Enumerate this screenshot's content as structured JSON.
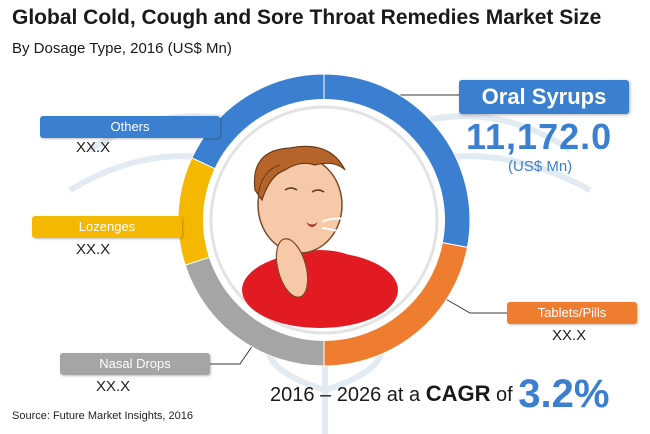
{
  "title": "Global Cold, Cough and Sore Throat Remedies Market Size",
  "subtitle": "By Dosage Type, 2016 (US$ Mn)",
  "source": "Source: Future Market Insights, 2016",
  "highlight": {
    "label": "Oral Syrups",
    "value": "11,172.0",
    "unit": "(US$ Mn)"
  },
  "cagr": {
    "prefix": "2016 – 2026 at a",
    "word": "CAGR",
    "of": "of",
    "rate": "3.2%"
  },
  "colors": {
    "oral_syrups": "#3a7fd0",
    "tablets_pills": "#ee7d2f",
    "nasal_drops": "#a5a5a5",
    "lozenges": "#f5b800",
    "others": "#3a7fd0"
  },
  "center_image": "coughing-boy-illustration",
  "chart_data": {
    "type": "pie",
    "style": "donut",
    "categories": [
      "Oral Syrups",
      "Tablets/Pills",
      "Nasal Drops",
      "Lozenges",
      "Others"
    ],
    "value_labels": [
      "11,172.0",
      "XX.X",
      "XX.X",
      "XX.X",
      "XX.X"
    ],
    "shares_percent": [
      28,
      22,
      20,
      12,
      18
    ],
    "legend_placement": "callouts"
  }
}
